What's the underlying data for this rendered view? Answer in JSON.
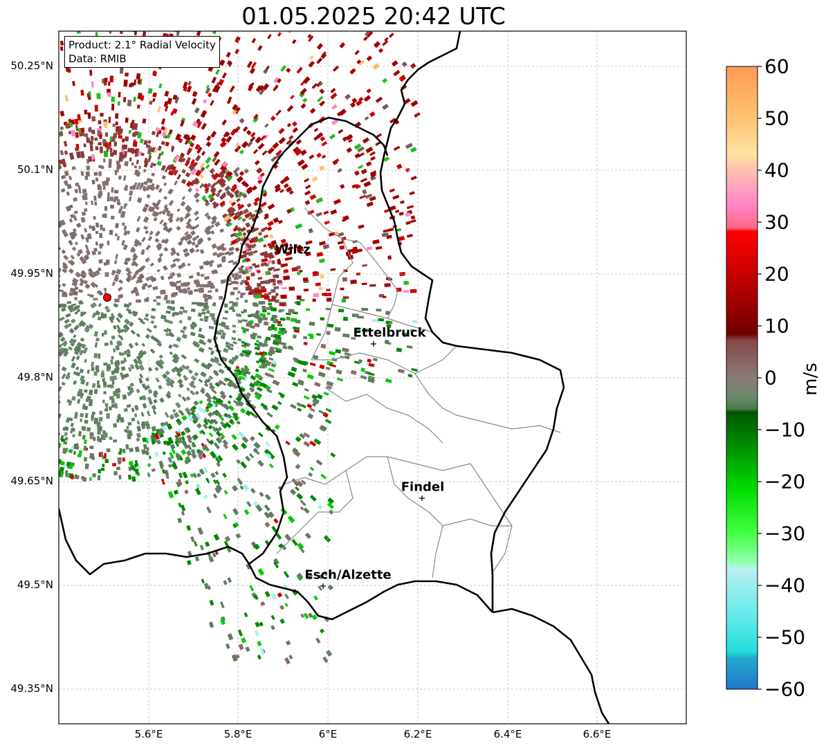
{
  "title": "01.05.2025 20:42 UTC",
  "info": {
    "product": "Product: 2.1° Radial Velocity",
    "source": "Data: RMIB"
  },
  "lat_ticks": [
    "50.25°N",
    "50.1°N",
    "49.95°N",
    "49.8°N",
    "49.65°N",
    "49.5°N",
    "49.35°N"
  ],
  "lon_ticks": [
    "5.6°E",
    "5.8°E",
    "6°E",
    "6.2°E",
    "6.4°E",
    "6.6°E"
  ],
  "cities": [
    {
      "name": "Wiltz"
    },
    {
      "name": "Ettelbruck"
    },
    {
      "name": "Findel"
    },
    {
      "name": "Esch/Alzette"
    }
  ],
  "colorbar": {
    "label": "m/s",
    "ticks": [
      "60",
      "50",
      "40",
      "30",
      "20",
      "10",
      "0",
      "−10",
      "−20",
      "−30",
      "−40",
      "−50",
      "−60"
    ],
    "range": [
      -60,
      60
    ],
    "colors": {
      "+60": "#ff9a55",
      "+50": "#ffd090",
      "+40": "#ff88c8",
      "+30": "#ff4466",
      "+20": "#cc0000",
      "+10": "#700000",
      "0": "#8a7a7a",
      "-10": "#005500",
      "-20": "#00aa00",
      "-30": "#44ff44",
      "-40": "#aaeeee",
      "-50": "#22dddd",
      "-60": "#2277cc"
    }
  },
  "map": {
    "extent_lon": [
      5.4,
      6.8
    ],
    "extent_lat": [
      49.3,
      50.3
    ],
    "radar_site": {
      "lon": 5.51,
      "lat": 49.915
    },
    "grid": true
  }
}
